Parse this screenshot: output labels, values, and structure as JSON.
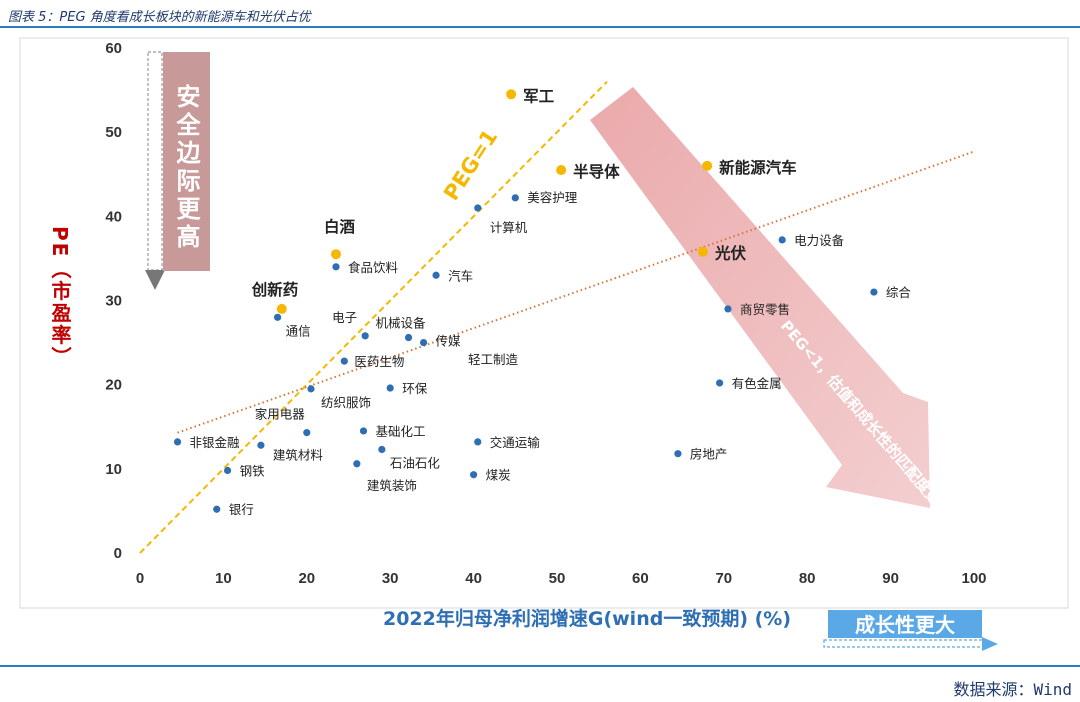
{
  "header": {
    "title": "图表 5：PEG 角度看成长板块的新能源车和光伏占优"
  },
  "footer": {
    "source": "数据来源：Wind"
  },
  "annotations": {
    "safety_box": "安全边际更高",
    "growth_box": "成长性更大",
    "peg1_line_label": "PEG=1",
    "peg_lt1_label": "PEG<1，估值和成长性的匹配度更高"
  },
  "colors": {
    "point": "#2e6fb3",
    "highlight": "#f5b800",
    "peg_line": "#f5b800",
    "trend_line": "#d9733c",
    "arrow": "#e6a7a8",
    "safety_box": "#c79a99",
    "growth_box": "#5aa9e6",
    "ylabel": "#c00000",
    "xlabel": "#2e6fb3"
  },
  "chart_data": {
    "type": "scatter",
    "title": "",
    "xlabel": "2022年归母净利润增速G(wind一致预期) (%)",
    "ylabel": "PE（市盈率）",
    "xlim": [
      0,
      100
    ],
    "ylim": [
      0,
      60
    ],
    "xticks": [
      0,
      10,
      20,
      30,
      40,
      50,
      60,
      70,
      80,
      90,
      100
    ],
    "yticks": [
      0,
      10,
      20,
      30,
      40,
      50,
      60
    ],
    "grid": false,
    "reference_lines": [
      {
        "name": "PEG=1",
        "from": [
          0,
          0
        ],
        "to": [
          56,
          56
        ]
      },
      {
        "name": "trend",
        "from": [
          4.5,
          14.3
        ],
        "to": [
          100,
          47.7
        ]
      }
    ],
    "series": [
      {
        "points": [
          {
            "label": "美容护理",
            "x": 45,
            "y": 42.2
          },
          {
            "label": "计算机",
            "x": 40.5,
            "y": 41
          },
          {
            "label": "食品饮料",
            "x": 23.5,
            "y": 34
          },
          {
            "label": "汽车",
            "x": 35.5,
            "y": 33
          },
          {
            "label": "通信",
            "x": 16.5,
            "y": 28
          },
          {
            "label": "电子",
            "x": 27,
            "y": 25.8
          },
          {
            "label": "机械设备",
            "x": 32.2,
            "y": 25.6
          },
          {
            "label": "传媒",
            "x": 34,
            "y": 25
          },
          {
            "label": "医药生物",
            "x": 24.5,
            "y": 22.8
          },
          {
            "label": "纺织服饰",
            "x": 20.5,
            "y": 19.5
          },
          {
            "label": "环保",
            "x": 30,
            "y": 19.6
          },
          {
            "label": "家用电器",
            "x": 20,
            "y": 14.3
          },
          {
            "label": "基础化工",
            "x": 26.8,
            "y": 14.5
          },
          {
            "label": "非银金融",
            "x": 4.5,
            "y": 13.2
          },
          {
            "label": "钢铁",
            "x": 10.5,
            "y": 9.8
          },
          {
            "label": "建筑材料",
            "x": 14.5,
            "y": 12.8
          },
          {
            "label": "石油石化",
            "x": 29,
            "y": 12.3
          },
          {
            "label": "建筑装饰",
            "x": 26,
            "y": 10.6
          },
          {
            "label": "交通运输",
            "x": 40.5,
            "y": 13.2
          },
          {
            "label": "煤炭",
            "x": 40,
            "y": 9.3
          },
          {
            "label": "银行",
            "x": 9.2,
            "y": 5.2
          },
          {
            "label": "电力设备",
            "x": 77,
            "y": 37.2
          },
          {
            "label": "综合",
            "x": 88,
            "y": 31
          },
          {
            "label": "商贸零售",
            "x": 70.5,
            "y": 29
          },
          {
            "label": "有色金属",
            "x": 69.5,
            "y": 20.2
          },
          {
            "label": "房地产",
            "x": 64.5,
            "y": 11.8
          },
          {
            "label": "轻工制造",
            "x": null,
            "y": null
          }
        ]
      },
      {
        "points": [
          {
            "label": "军工",
            "x": 44.5,
            "y": 54.5
          },
          {
            "label": "半导体",
            "x": 50.5,
            "y": 45.5
          },
          {
            "label": "新能源汽车",
            "x": 68,
            "y": 46
          },
          {
            "label": "白酒",
            "x": 23.5,
            "y": 35.5
          },
          {
            "label": "光伏",
            "x": 67.5,
            "y": 35.8
          },
          {
            "label": "创新药",
            "x": 17,
            "y": 29
          }
        ]
      }
    ]
  }
}
